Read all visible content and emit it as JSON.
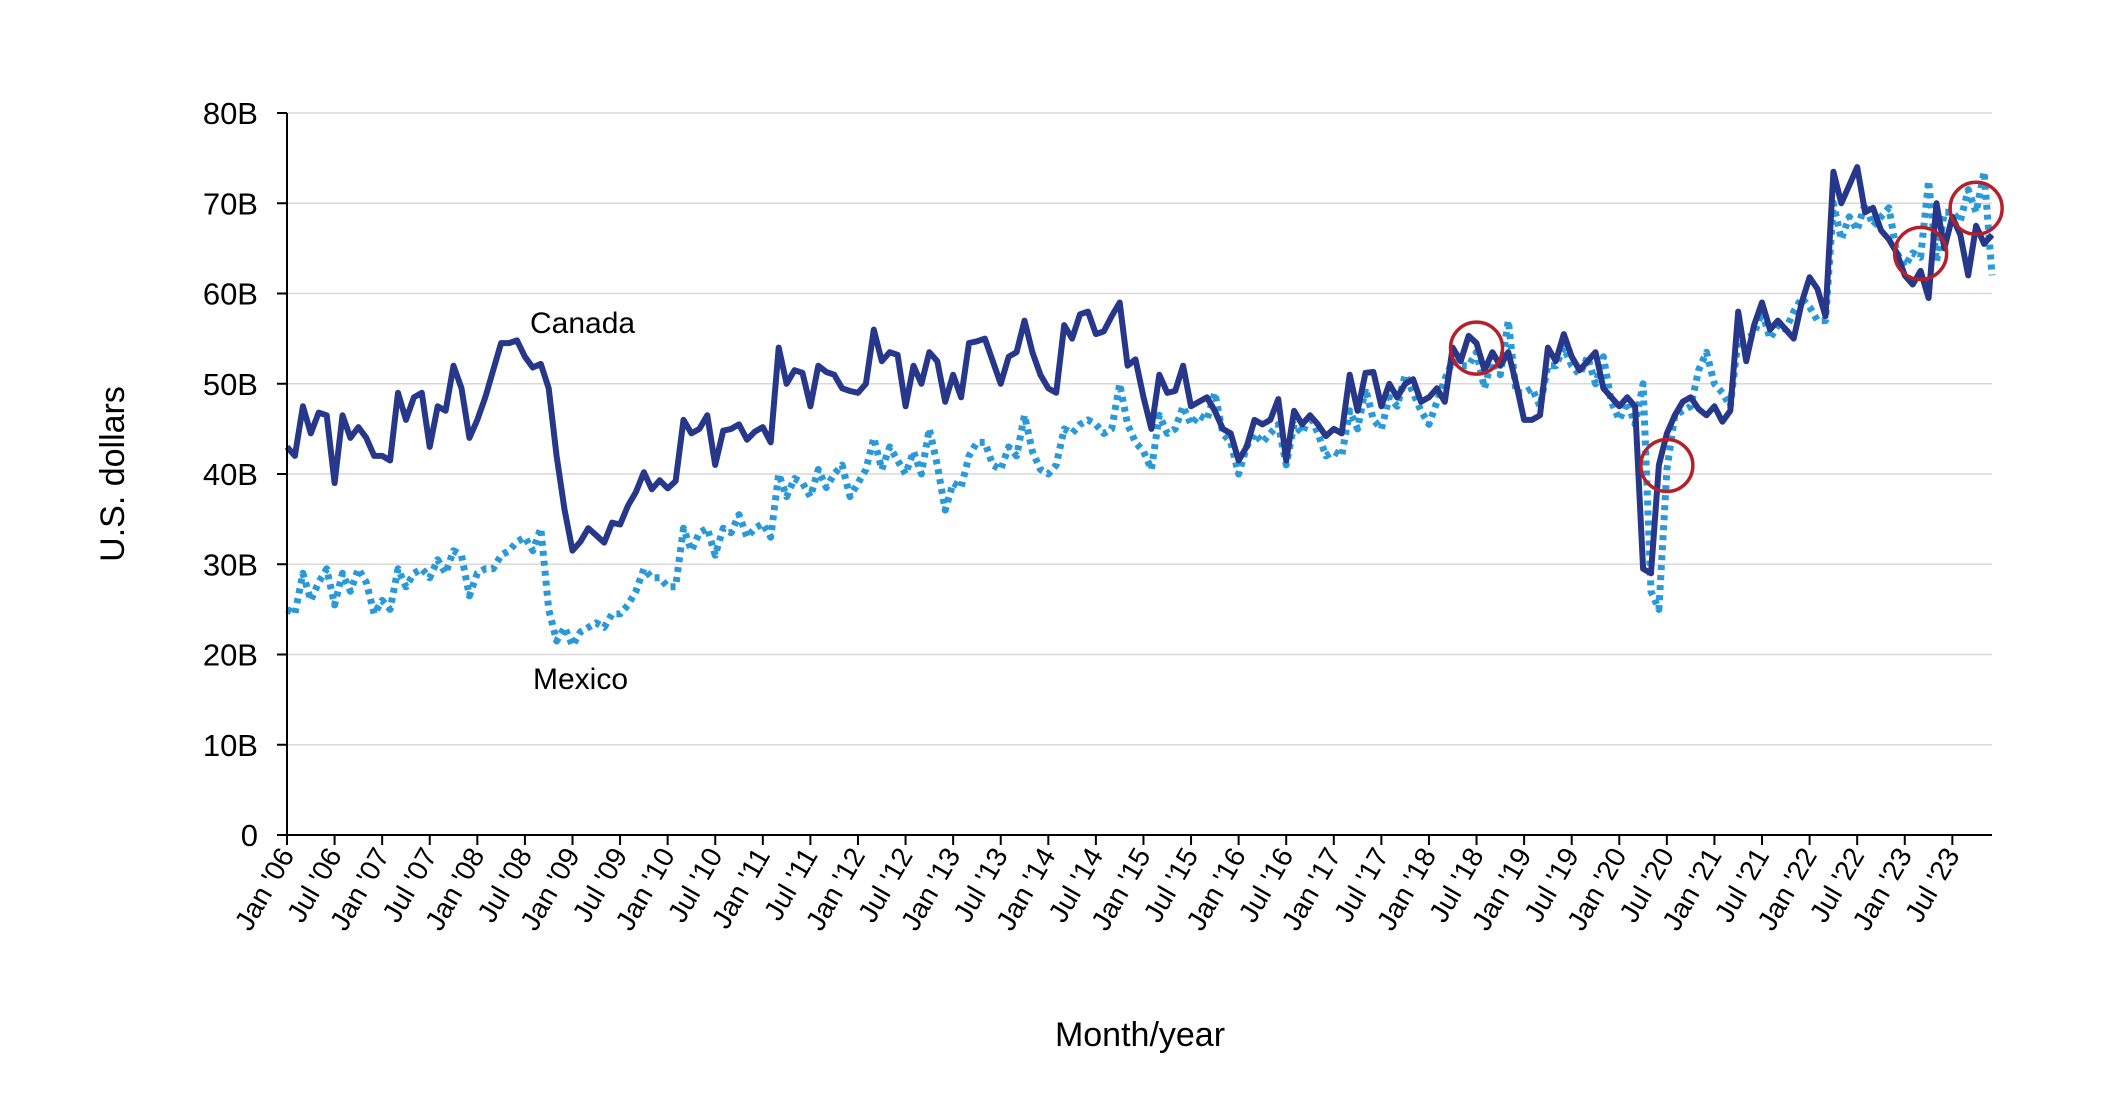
{
  "chart_data": {
    "type": "line",
    "xlabel": "Month/year",
    "ylabel": "U.S. dollars",
    "ylim": [
      0,
      80
    ],
    "yticks": [
      0,
      10,
      20,
      30,
      40,
      50,
      60,
      70,
      80
    ],
    "ytick_labels": [
      "0",
      "10B",
      "20B",
      "30B",
      "40B",
      "50B",
      "60B",
      "70B",
      "80B"
    ],
    "grid": "horizontal",
    "legend": "none",
    "x_start": "Jan '06",
    "x_end": "Dec '23",
    "xtick_labels": [
      "Jan '06",
      "Jul '06",
      "Jan '07",
      "Jul '07",
      "Jan '08",
      "Jul '08",
      "Jan '09",
      "Jul '09",
      "Jan '10",
      "Jul '10",
      "Jan '11",
      "Jul '11",
      "Jan '12",
      "Jul '12",
      "Jan '13",
      "Jul '13",
      "Jan '14",
      "Jul '14",
      "Jan '15",
      "Jul '15",
      "Jan '16",
      "Jul '16",
      "Jan '17",
      "Jul '17",
      "Jan '18",
      "Jul '18",
      "Jan '19",
      "Jul '19",
      "Jan '20",
      "Jul '20",
      "Jan '21",
      "Jul '21",
      "Jan '22",
      "Jul '22",
      "Jan '23",
      "Jul '23"
    ],
    "series": [
      {
        "name": "Canada",
        "color": "#27388a",
        "style": "solid",
        "values": [
          43.0,
          42.0,
          47.5,
          44.5,
          46.8,
          46.5,
          39.0,
          46.5,
          44.0,
          45.2,
          44.0,
          42.0,
          42.0,
          41.5,
          49.0,
          46.0,
          48.5,
          49.0,
          43.0,
          47.5,
          47.0,
          52.0,
          49.5,
          44.0,
          46.0,
          48.5,
          51.5,
          54.5,
          54.5,
          54.8,
          53.0,
          51.8,
          52.2,
          49.5,
          42.0,
          36.0,
          31.5,
          32.5,
          34.0,
          33.2,
          32.4,
          34.6,
          34.4,
          36.5,
          38.0,
          40.2,
          38.3,
          39.3,
          38.4,
          39.2,
          46.0,
          44.5,
          45.0,
          46.5,
          41.0,
          44.8,
          45.0,
          45.5,
          43.8,
          44.7,
          45.2,
          43.5,
          54.0,
          50.0,
          51.5,
          51.2,
          47.5,
          52.0,
          51.3,
          51.0,
          49.5,
          49.2,
          49.0,
          50.0,
          56.0,
          52.5,
          53.5,
          53.2,
          47.5,
          52.0,
          50.0,
          53.5,
          52.5,
          48.0,
          51.0,
          48.5,
          54.5,
          54.7,
          55.0,
          52.5,
          50.0,
          53.0,
          53.5,
          57.0,
          53.5,
          51.0,
          49.5,
          49.0,
          56.5,
          55.0,
          57.7,
          58.0,
          55.5,
          55.8,
          57.5,
          59.0,
          52.0,
          52.7,
          48.5,
          45.0,
          51.0,
          49.0,
          49.2,
          52.0,
          47.5,
          48.0,
          48.5,
          47.0,
          45.0,
          44.5,
          41.5,
          43.0,
          46.0,
          45.5,
          46.0,
          48.3,
          41.5,
          47.0,
          45.5,
          46.5,
          45.5,
          44.2,
          45.0,
          44.5,
          51.0,
          47.0,
          51.2,
          51.3,
          47.5,
          50.0,
          48.5,
          50.0,
          50.5,
          48.0,
          48.5,
          49.5,
          48.0,
          54.0,
          52.5,
          55.3,
          54.5,
          51.5,
          53.5,
          52.0,
          53.5,
          50.0,
          46.0,
          46.0,
          46.5,
          54.0,
          52.5,
          55.5,
          53.0,
          51.5,
          52.5,
          53.5,
          49.5,
          48.5,
          47.5,
          48.5,
          47.5,
          29.5,
          29.0,
          41.0,
          44.5,
          46.5,
          48.0,
          48.5,
          47.2,
          46.5,
          47.5,
          45.8,
          47.0,
          58.0,
          52.5,
          56.5,
          59.0,
          56.0,
          57.0,
          56.0,
          55.0,
          59.0,
          61.8,
          60.5,
          57.5,
          73.5,
          70.0,
          72.0,
          74.0,
          69.0,
          69.5,
          67.0,
          66.0,
          64.5,
          62.0,
          61.0,
          62.5,
          59.5,
          70.0,
          65.0,
          68.5,
          66.5,
          62.0,
          67.5,
          65.5,
          66.5
        ]
      },
      {
        "name": "Mexico",
        "color": "#2a99d8",
        "style": "dotted",
        "values": [
          25.0,
          24.5,
          29.0,
          26.0,
          28.0,
          29.5,
          25.5,
          29.0,
          27.0,
          29.5,
          28.0,
          24.5,
          26.0,
          25.0,
          29.5,
          27.5,
          29.0,
          29.5,
          28.5,
          30.5,
          29.0,
          31.5,
          31.0,
          26.5,
          29.0,
          29.5,
          29.5,
          31.0,
          31.5,
          32.5,
          33.0,
          31.5,
          34.0,
          25.0,
          21.5,
          23.0,
          21.0,
          22.5,
          23.0,
          23.5,
          23.0,
          24.5,
          24.5,
          25.5,
          27.0,
          29.5,
          28.5,
          28.5,
          27.5,
          27.5,
          34.0,
          31.5,
          33.5,
          34.0,
          31.0,
          34.0,
          33.5,
          35.5,
          33.0,
          34.0,
          34.5,
          33.0,
          40.0,
          37.5,
          39.5,
          39.0,
          37.5,
          40.5,
          38.5,
          40.0,
          41.0,
          37.5,
          39.0,
          40.5,
          44.0,
          40.5,
          43.0,
          41.5,
          40.0,
          42.5,
          40.0,
          45.0,
          41.0,
          36.0,
          39.0,
          38.5,
          42.0,
          43.5,
          43.5,
          41.0,
          40.5,
          43.0,
          42.0,
          46.5,
          42.5,
          40.5,
          40.0,
          41.0,
          45.0,
          44.5,
          45.5,
          46.0,
          45.5,
          44.5,
          45.0,
          50.0,
          45.5,
          43.5,
          42.5,
          40.5,
          46.5,
          44.5,
          45.0,
          47.5,
          45.5,
          46.5,
          46.0,
          49.0,
          44.5,
          43.5,
          40.0,
          43.0,
          44.5,
          43.5,
          44.5,
          45.5,
          41.0,
          45.5,
          44.5,
          46.5,
          44.5,
          42.0,
          42.5,
          42.0,
          47.0,
          45.0,
          49.5,
          46.0,
          45.0,
          48.5,
          47.5,
          51.0,
          49.0,
          47.0,
          45.5,
          48.0,
          50.5,
          52.5,
          52.0,
          52.0,
          53.5,
          49.5,
          53.0,
          51.0,
          57.0,
          49.0,
          49.0,
          49.5,
          47.5,
          52.0,
          52.0,
          54.0,
          52.0,
          51.0,
          53.0,
          50.0,
          53.0,
          48.0,
          46.0,
          48.0,
          45.5,
          50.0,
          27.0,
          25.0,
          40.5,
          46.5,
          47.0,
          47.5,
          51.5,
          53.5,
          50.0,
          49.0,
          47.5,
          55.0,
          55.0,
          55.5,
          58.0,
          55.0,
          56.5,
          56.0,
          58.0,
          59.5,
          58.5,
          57.0,
          57.0,
          70.0,
          66.0,
          68.5,
          67.0,
          70.0,
          67.5,
          68.5,
          69.5,
          64.5,
          63.0,
          64.5,
          64.0,
          72.5,
          63.5,
          69.0,
          69.0,
          68.0,
          71.5,
          69.0,
          73.5,
          62.0
        ]
      }
    ],
    "annotations": {
      "series_labels": [
        "Canada",
        "Mexico"
      ],
      "highlight_circles": [
        "Jul '18",
        "Jul '20",
        "Mar '23",
        "Oct '23"
      ],
      "circle_color": "#b5202a"
    }
  }
}
